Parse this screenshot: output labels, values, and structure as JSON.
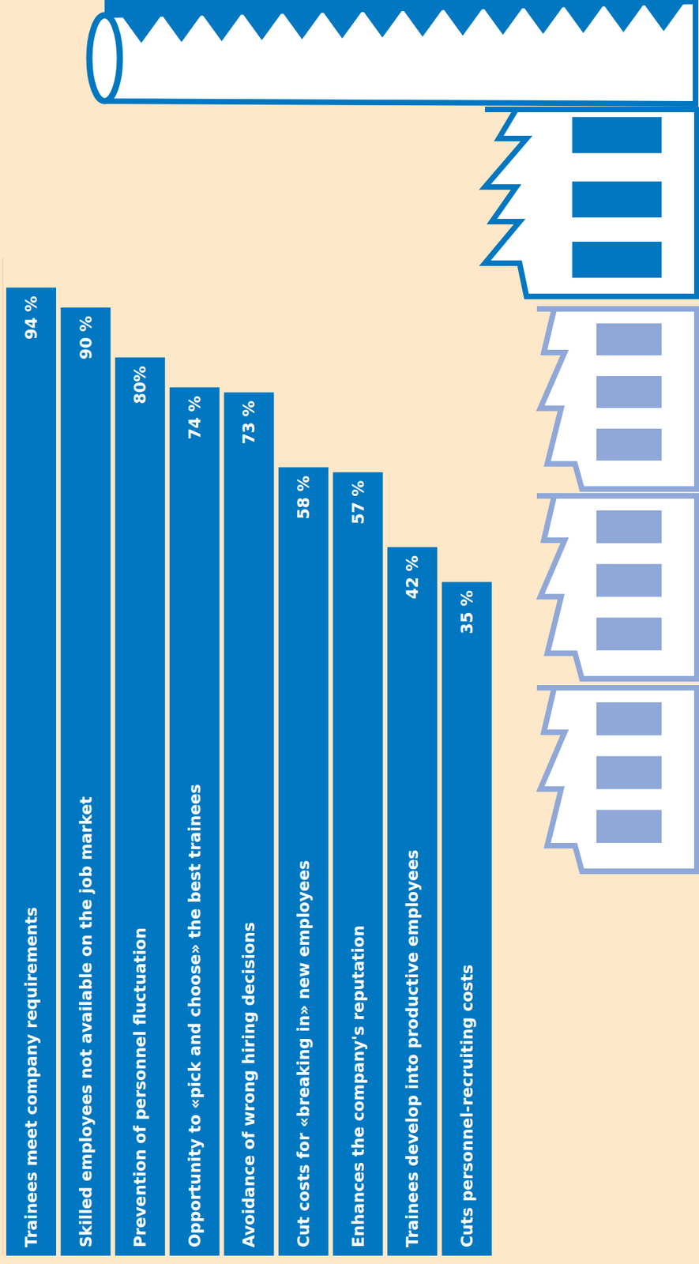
{
  "chart_data": {
    "type": "bar",
    "categories": [
      "Trainees meet company requirements",
      "Skilled employees not available on the job market",
      "Prevention of personnel fluctuation",
      "Opportunity to «pick and choose» the best trainees",
      "Avoidance of wrong hiring decisions",
      "Cut costs for «breaking in» new employees",
      "Enhances the company's reputation",
      "Trainees develop into productive employees",
      "Cuts personnel-recruiting costs"
    ],
    "values": [
      94,
      90,
      80,
      74,
      73,
      58,
      57,
      42,
      35
    ],
    "value_labels": [
      "94 %",
      "90 %",
      "80%",
      "74 %",
      "73 %",
      "58 %",
      "57 %",
      "42 %",
      "35 %"
    ],
    "color": "#0077c0",
    "ylim": [
      -100,
      100
    ],
    "grid": false,
    "tick_labels": false,
    "data_labels": true
  }
}
